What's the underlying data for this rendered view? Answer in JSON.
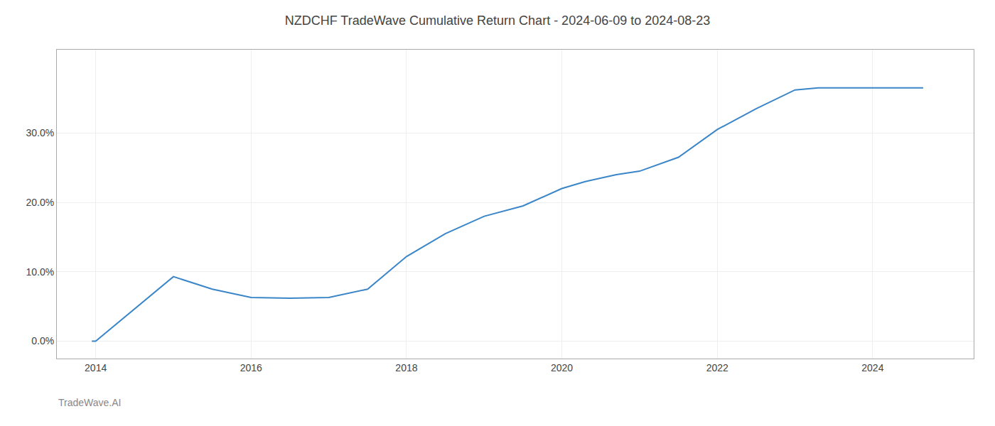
{
  "chart_data": {
    "type": "line",
    "title": "NZDCHF TradeWave Cumulative Return Chart - 2024-06-09 to 2024-08-23",
    "annotations": [
      "TradeWave.AI"
    ],
    "x": [
      2013.95,
      2014.0,
      2015.0,
      2015.5,
      2016.0,
      2016.5,
      2017.0,
      2017.5,
      2018.0,
      2018.5,
      2019.0,
      2019.5,
      2020.0,
      2020.3,
      2020.7,
      2021.0,
      2021.5,
      2022.0,
      2022.5,
      2023.0,
      2023.3,
      2024.0,
      2024.65
    ],
    "values": [
      0.0,
      0.0,
      9.3,
      7.5,
      6.3,
      6.2,
      6.3,
      7.5,
      12.2,
      15.5,
      18.0,
      19.5,
      22.0,
      23.0,
      24.0,
      24.5,
      26.5,
      30.5,
      33.5,
      36.2,
      36.5,
      36.5,
      36.5
    ],
    "color": "#3a86c8",
    "xlim": [
      2013.5,
      2025.3
    ],
    "ylim": [
      -2.5,
      42.0
    ],
    "xticks": [
      2014,
      2016,
      2018,
      2020,
      2022,
      2024
    ],
    "yticks": [
      {
        "value": 0.0,
        "label": "0.0%"
      },
      {
        "value": 10.0,
        "label": "10.0%"
      },
      {
        "value": 20.0,
        "label": "20.0%"
      },
      {
        "value": 30.0,
        "label": "30.0%"
      }
    ],
    "grid": true
  }
}
